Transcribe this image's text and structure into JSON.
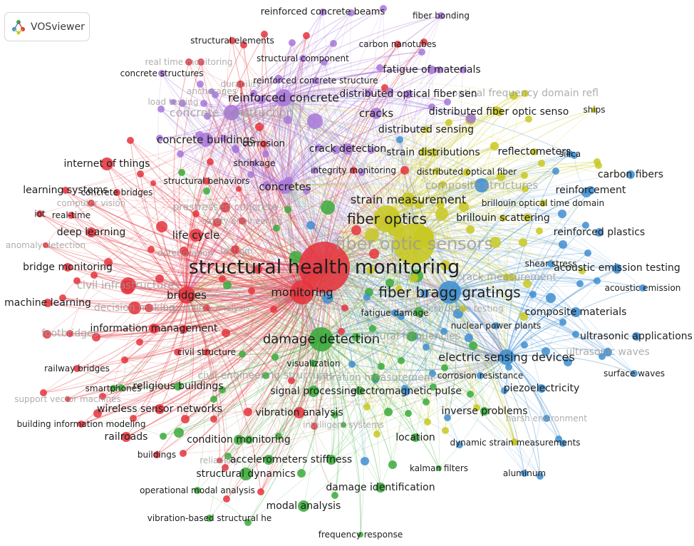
{
  "app": {
    "name": "VOSviewer"
  },
  "colors": {
    "cluster1": "#e5343d",
    "cluster2": "#3aaa3a",
    "cluster3": "#3e8ed0",
    "cluster4": "#c8c822",
    "cluster5": "#a777d9"
  },
  "network": {
    "nodes": [
      {
        "id": "structural health monitoring",
        "label": "structural health monitoring",
        "c": 1,
        "w": 5
      },
      {
        "id": "monitoring",
        "label": "monitoring",
        "c": 1,
        "w": 3
      },
      {
        "id": "bridges",
        "label": "bridges",
        "c": 1,
        "w": 2
      },
      {
        "id": "life cycle",
        "label": "life cycle",
        "c": 1,
        "w": 2
      },
      {
        "id": "internet of things",
        "label": "internet of things",
        "c": 1,
        "w": 2
      },
      {
        "id": "learning systems",
        "label": "learning systems",
        "c": 1,
        "w": 1
      },
      {
        "id": "concrete bridges",
        "label": "concrete bridges",
        "c": 1,
        "w": 1
      },
      {
        "id": "structural behaviors",
        "label": "structural behaviors",
        "c": 1,
        "w": 1
      },
      {
        "id": "computer vision",
        "label": "computer vision",
        "c": 1,
        "w": 1
      },
      {
        "id": "iot",
        "label": "iot",
        "c": 1,
        "w": 1
      },
      {
        "id": "real-time",
        "label": "real-time",
        "c": 1,
        "w": 1
      },
      {
        "id": "deep learning",
        "label": "deep learning",
        "c": 1,
        "w": 1
      },
      {
        "id": "anomaly detection",
        "label": "anomaly detection",
        "c": 1,
        "w": 1
      },
      {
        "id": "bridge monitoring",
        "label": "bridge monitoring",
        "c": 1,
        "w": 1
      },
      {
        "id": "machine learning",
        "label": "machine learning",
        "c": 1,
        "w": 1
      },
      {
        "id": "civil infrastructures",
        "label": "civil infrastructures",
        "c": 1,
        "w": 2
      },
      {
        "id": "decision making",
        "label": "decision making",
        "c": 1,
        "w": 1
      },
      {
        "id": "uncertainty analysis",
        "label": "uncertainty analysis",
        "c": 1,
        "w": 1
      },
      {
        "id": "information management",
        "label": "information management",
        "c": 1,
        "w": 1
      },
      {
        "id": "footbridges",
        "label": "footbridges",
        "c": 1,
        "w": 1
      },
      {
        "id": "civil structure",
        "label": "civil structure",
        "c": 1,
        "w": 1
      },
      {
        "id": "railway bridges",
        "label": "railway bridges",
        "c": 1,
        "w": 1
      },
      {
        "id": "wireless sensor networks",
        "label": "wireless sensor networks",
        "c": 1,
        "w": 2
      },
      {
        "id": "support vector machines",
        "label": "support vector machines",
        "c": 1,
        "w": 1
      },
      {
        "id": "building information modeling",
        "label": "building information modeling",
        "c": 1,
        "w": 1
      },
      {
        "id": "railroads",
        "label": "railroads",
        "c": 1,
        "w": 1
      },
      {
        "id": "buildings",
        "label": "buildings",
        "c": 1,
        "w": 1
      },
      {
        "id": "vibration analysis",
        "label": "vibration analysis",
        "c": 1,
        "w": 1
      },
      {
        "id": "prestressed concrete",
        "label": "prestressed concrete",
        "c": 1,
        "w": 1
      },
      {
        "id": "safety engineering",
        "label": "safety engineering",
        "c": 1,
        "w": 1
      },
      {
        "id": "deterioration",
        "label": "deterioration",
        "c": 1,
        "w": 1
      },
      {
        "id": "testing",
        "label": "testing",
        "c": 1,
        "w": 1
      },
      {
        "id": "structural elements",
        "label": "structural elements",
        "c": 1,
        "w": 1
      },
      {
        "id": "real time monitoring",
        "label": "real time monitoring",
        "c": 1,
        "w": 1
      },
      {
        "id": "durability",
        "label": "durability",
        "c": 1,
        "w": 1
      },
      {
        "id": "corrosion",
        "label": "corrosion",
        "c": 1,
        "w": 1
      },
      {
        "id": "integrity monitoring",
        "label": "integrity monitoring",
        "c": 1,
        "w": 1
      },
      {
        "id": "carbon nanotubes",
        "label": "carbon nanotubes",
        "c": 1,
        "w": 1
      },
      {
        "id": "reliability",
        "label": "reliability",
        "c": 1,
        "w": 1
      },
      {
        "id": "damage detection",
        "label": "damage detection",
        "c": 2,
        "w": 3
      },
      {
        "id": "religious buildings",
        "label": "religious buildings",
        "c": 2,
        "w": 1
      },
      {
        "id": "smartphones",
        "label": "smartphones",
        "c": 2,
        "w": 1
      },
      {
        "id": "visualization",
        "label": "visualization",
        "c": 2,
        "w": 1
      },
      {
        "id": "civil engineering structures",
        "label": "civil engineering structures",
        "c": 2,
        "w": 1
      },
      {
        "id": "signal processing",
        "label": "signal processing",
        "c": 2,
        "w": 1
      },
      {
        "id": "vibration measurement",
        "label": "vibration measurement",
        "c": 2,
        "w": 1
      },
      {
        "id": "condition monitoring",
        "label": "condition monitoring",
        "c": 2,
        "w": 1
      },
      {
        "id": "accelerometers",
        "label": "accelerometers",
        "c": 2,
        "w": 1
      },
      {
        "id": "stiffness",
        "label": "stiffness",
        "c": 2,
        "w": 1
      },
      {
        "id": "structural dynamics",
        "label": "structural dynamics",
        "c": 2,
        "w": 2
      },
      {
        "id": "operational modal analysis",
        "label": "operational modal analysis",
        "c": 2,
        "w": 1
      },
      {
        "id": "modal analysis",
        "label": "modal analysis",
        "c": 2,
        "w": 2
      },
      {
        "id": "vibration-based structural he",
        "label": "vibration-based structural he",
        "c": 2,
        "w": 1
      },
      {
        "id": "frequency response",
        "label": "frequency response",
        "c": 2,
        "w": 1
      },
      {
        "id": "damage identification",
        "label": "damage identification",
        "c": 2,
        "w": 1
      },
      {
        "id": "kalman filters",
        "label": "kalman filters",
        "c": 2,
        "w": 1
      },
      {
        "id": "location",
        "label": "location",
        "c": 2,
        "w": 1
      },
      {
        "id": "inverse problems",
        "label": "inverse problems",
        "c": 2,
        "w": 1
      },
      {
        "id": "intelligent systems",
        "label": "intelligent systems",
        "c": 2,
        "w": 1
      },
      {
        "id": "natural frequencies",
        "label": "natural frequencies",
        "c": 2,
        "w": 1
      },
      {
        "id": "fiber bragg gratings",
        "label": "fiber bragg gratings",
        "c": 3,
        "w": 3
      },
      {
        "id": "electric sensing devices",
        "label": "electric sensing devices",
        "c": 3,
        "w": 2
      },
      {
        "id": "piezoelectricity",
        "label": "piezoelectricity",
        "c": 3,
        "w": 1
      },
      {
        "id": "electromagnetic pulse",
        "label": "electromagnetic pulse",
        "c": 3,
        "w": 1
      },
      {
        "id": "corrosion resistance",
        "label": "corrosion resistance",
        "c": 3,
        "w": 1
      },
      {
        "id": "composite materials",
        "label": "composite materials",
        "c": 3,
        "w": 1
      },
      {
        "id": "ultrasonic applications",
        "label": "ultrasonic applications",
        "c": 3,
        "w": 1
      },
      {
        "id": "ultrasonic waves",
        "label": "ultrasonic waves",
        "c": 3,
        "w": 1
      },
      {
        "id": "surface waves",
        "label": "surface waves",
        "c": 3,
        "w": 1
      },
      {
        "id": "acoustic emission",
        "label": "acoustic emission",
        "c": 3,
        "w": 1
      },
      {
        "id": "acoustic emission testing",
        "label": "acoustic emission testing",
        "c": 3,
        "w": 1
      },
      {
        "id": "reinforced plastics",
        "label": "reinforced plastics",
        "c": 3,
        "w": 1
      },
      {
        "id": "reinforcement",
        "label": "reinforcement",
        "c": 3,
        "w": 1
      },
      {
        "id": "carbon fibers",
        "label": "carbon fibers",
        "c": 3,
        "w": 1
      },
      {
        "id": "silica",
        "label": "silica",
        "c": 3,
        "w": 1
      },
      {
        "id": "aluminum",
        "label": "aluminum",
        "c": 3,
        "w": 1
      },
      {
        "id": "composite structures",
        "label": "composite structures",
        "c": 3,
        "w": 1
      },
      {
        "id": "nuclear power plants",
        "label": "nuclear power plants",
        "c": 3,
        "w": 1
      },
      {
        "id": "fatigue damage",
        "label": "fatigue damage",
        "c": 3,
        "w": 1
      },
      {
        "id": "harsh environment",
        "label": "harsh environment",
        "c": 3,
        "w": 1
      },
      {
        "id": "shear stress",
        "label": "shear stress",
        "c": 3,
        "w": 1
      },
      {
        "id": "fiber optic sensors",
        "label": "fiber optic sensors",
        "c": 4,
        "w": 4
      },
      {
        "id": "fiber optics",
        "label": "fiber optics",
        "c": 4,
        "w": 3
      },
      {
        "id": "strain measurement",
        "label": "strain measurement",
        "c": 4,
        "w": 2
      },
      {
        "id": "distributed sensing",
        "label": "distributed sensing",
        "c": 4,
        "w": 1
      },
      {
        "id": "strain distributions",
        "label": "strain distributions",
        "c": 4,
        "w": 1
      },
      {
        "id": "distributed optical fiber",
        "label": "distributed optical fiber",
        "c": 4,
        "w": 1
      },
      {
        "id": "brillouin scattering",
        "label": "brillouin scattering",
        "c": 4,
        "w": 1
      },
      {
        "id": "brillouin optical time domain",
        "label": "brillouin optical time domain",
        "c": 4,
        "w": 1
      },
      {
        "id": "reflectometers",
        "label": "reflectometers",
        "c": 4,
        "w": 1
      },
      {
        "id": "ships",
        "label": "ships",
        "c": 4,
        "w": 1
      },
      {
        "id": "optical frequency domain refl",
        "label": "optical frequency domain refl",
        "c": 4,
        "w": 1
      },
      {
        "id": "distributed fiber optic senso",
        "label": "distributed fiber optic senso",
        "c": 4,
        "w": 1
      },
      {
        "id": "crack measurement",
        "label": "crack measurement",
        "c": 4,
        "w": 1
      },
      {
        "id": "dynamic strain measurements",
        "label": "dynamic strain measurements",
        "c": 4,
        "w": 1
      },
      {
        "id": "destructive testing",
        "label": "destructive testing",
        "c": 4,
        "w": 1
      },
      {
        "id": "reinforced concrete",
        "label": "reinforced concrete",
        "c": 5,
        "w": 2
      },
      {
        "id": "concrete construction",
        "label": "concrete construction",
        "c": 5,
        "w": 2
      },
      {
        "id": "concrete buildings",
        "label": "concrete buildings",
        "c": 5,
        "w": 2
      },
      {
        "id": "concretes",
        "label": "concretes",
        "c": 5,
        "w": 2
      },
      {
        "id": "cracks",
        "label": "cracks",
        "c": 5,
        "w": 1
      },
      {
        "id": "crack detection",
        "label": "crack detection",
        "c": 5,
        "w": 1
      },
      {
        "id": "reinforced concrete beams",
        "label": "reinforced concrete beams",
        "c": 5,
        "w": 1
      },
      {
        "id": "fiber bonding",
        "label": "fiber bonding",
        "c": 5,
        "w": 1
      },
      {
        "id": "structural component",
        "label": "structural component",
        "c": 5,
        "w": 1
      },
      {
        "id": "fatigue of materials",
        "label": "fatigue of materials",
        "c": 5,
        "w": 1
      },
      {
        "id": "reinforced concrete structure",
        "label": "reinforced concrete structure",
        "c": 5,
        "w": 1
      },
      {
        "id": "distributed optical fiber sen",
        "label": "distributed optical fiber sen",
        "c": 5,
        "w": 1
      },
      {
        "id": "concrete structures",
        "label": "concrete structures",
        "c": 5,
        "w": 1
      },
      {
        "id": "load testing",
        "label": "load testing",
        "c": 5,
        "w": 1
      },
      {
        "id": "shrinkage",
        "label": "shrinkage",
        "c": 5,
        "w": 1
      },
      {
        "id": "anchorages",
        "label": "anchorages",
        "c": 5,
        "w": 1
      }
    ]
  }
}
